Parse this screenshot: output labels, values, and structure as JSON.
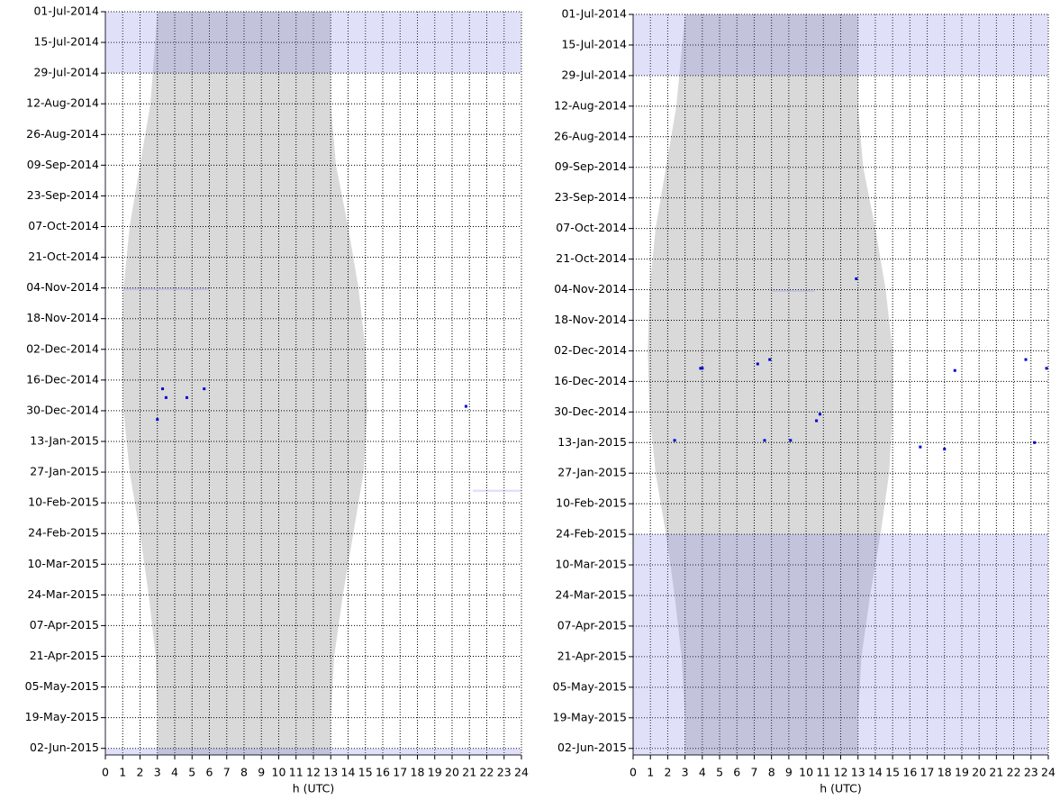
{
  "chart_data": [
    {
      "type": "scatter",
      "xlabel": "h (UTC)",
      "xlim": [
        0,
        24
      ],
      "xticks": [
        0,
        1,
        2,
        3,
        4,
        5,
        6,
        7,
        8,
        9,
        10,
        11,
        12,
        13,
        14,
        15,
        16,
        17,
        18,
        19,
        20,
        21,
        22,
        23,
        24
      ],
      "ylim": [
        "01-Jul-2014",
        "05-Jun-2015"
      ],
      "yticks": [
        "01-Jul-2014",
        "15-Jul-2014",
        "29-Jul-2014",
        "12-Aug-2014",
        "26-Aug-2014",
        "09-Sep-2014",
        "23-Sep-2014",
        "07-Oct-2014",
        "21-Oct-2014",
        "04-Nov-2014",
        "18-Nov-2014",
        "02-Dec-2014",
        "16-Dec-2014",
        "30-Dec-2014",
        "13-Jan-2015",
        "27-Jan-2015",
        "10-Feb-2015",
        "24-Feb-2015",
        "10-Mar-2015",
        "24-Mar-2015",
        "07-Apr-2015",
        "21-Apr-2015",
        "05-May-2015",
        "19-May-2015",
        "02-Jun-2015"
      ],
      "grid": true,
      "band": {
        "color": "#d9d9d9",
        "dates": [
          "01-Jul-2014",
          "12-Aug-2014",
          "09-Sep-2014",
          "07-Oct-2014",
          "04-Nov-2014",
          "02-Dec-2014",
          "30-Dec-2014",
          "27-Jan-2015",
          "24-Feb-2015",
          "24-Mar-2015",
          "21-Apr-2015",
          "19-May-2015",
          "05-Jun-2015"
        ],
        "lower": [
          3.0,
          2.6,
          2.0,
          1.4,
          1.05,
          0.95,
          1.05,
          1.4,
          2.0,
          2.5,
          2.9,
          3.0,
          3.0
        ],
        "upper": [
          13.0,
          13.0,
          13.3,
          14.0,
          14.6,
          15.0,
          15.1,
          14.9,
          14.3,
          13.7,
          13.2,
          13.0,
          13.0
        ]
      },
      "spans": {
        "color": "rgba(130,130,230,0.25)",
        "from": [
          "01-Jul-2014",
          "04-Nov-2014",
          "04-Feb-2015",
          "02-Jun-2015"
        ],
        "to": [
          "29-Jul-2014",
          "05-Nov-2014",
          "05-Feb-2015",
          "05-Jun-2015"
        ],
        "x0": [
          0,
          1,
          21.2,
          0
        ],
        "x1": [
          24,
          6,
          24,
          24
        ]
      },
      "series": [
        {
          "color": "#0000cc",
          "x": [
            3.3,
            3.5,
            4.7,
            5.7,
            20.8,
            3.0
          ],
          "y": [
            "20-Dec-2014",
            "24-Dec-2014",
            "24-Dec-2014",
            "20-Dec-2014",
            "28-Dec-2014",
            "03-Jan-2015"
          ]
        }
      ]
    },
    {
      "type": "scatter",
      "xlabel": "h (UTC)",
      "xlim": [
        0,
        24
      ],
      "xticks": [
        0,
        1,
        2,
        3,
        4,
        5,
        6,
        7,
        8,
        9,
        10,
        11,
        12,
        13,
        14,
        15,
        16,
        17,
        18,
        19,
        20,
        21,
        22,
        23,
        24
      ],
      "ylim": [
        "01-Jul-2014",
        "05-Jun-2015"
      ],
      "yticks": [
        "01-Jul-2014",
        "15-Jul-2014",
        "29-Jul-2014",
        "12-Aug-2014",
        "26-Aug-2014",
        "09-Sep-2014",
        "23-Sep-2014",
        "07-Oct-2014",
        "21-Oct-2014",
        "04-Nov-2014",
        "18-Nov-2014",
        "02-Dec-2014",
        "16-Dec-2014",
        "30-Dec-2014",
        "13-Jan-2015",
        "27-Jan-2015",
        "10-Feb-2015",
        "24-Feb-2015",
        "10-Mar-2015",
        "24-Mar-2015",
        "07-Apr-2015",
        "21-Apr-2015",
        "05-May-2015",
        "19-May-2015",
        "02-Jun-2015"
      ],
      "grid": true,
      "band": {
        "color": "#d9d9d9",
        "dates": [
          "01-Jul-2014",
          "12-Aug-2014",
          "09-Sep-2014",
          "07-Oct-2014",
          "04-Nov-2014",
          "02-Dec-2014",
          "30-Dec-2014",
          "27-Jan-2015",
          "24-Feb-2015",
          "24-Mar-2015",
          "21-Apr-2015",
          "19-May-2015",
          "05-Jun-2015"
        ],
        "lower": [
          3.0,
          2.5,
          1.9,
          1.3,
          0.95,
          0.85,
          0.95,
          1.3,
          1.9,
          2.4,
          2.8,
          3.0,
          3.0
        ],
        "upper": [
          13.0,
          13.0,
          13.3,
          14.0,
          14.6,
          15.0,
          15.0,
          14.8,
          14.3,
          13.7,
          13.2,
          13.0,
          13.0
        ]
      },
      "spans": {
        "color": "rgba(130,130,230,0.25)",
        "from": [
          "01-Jul-2014",
          "04-Nov-2014",
          "24-Feb-2015"
        ],
        "to": [
          "29-Jul-2014",
          "05-Nov-2014",
          "05-Jun-2015"
        ],
        "x0": [
          0,
          8,
          0
        ],
        "x1": [
          24,
          10.5,
          24
        ]
      },
      "series": [
        {
          "color": "#0000cc",
          "x": [
            3.9,
            4.0,
            7.2,
            7.9,
            10.8,
            10.6,
            2.4,
            7.6,
            9.1,
            16.6,
            18.0,
            18.6,
            22.7,
            23.9,
            23.2,
            12.9
          ],
          "y": [
            "10-Dec-2014",
            "10-Dec-2014",
            "08-Dec-2014",
            "06-Dec-2014",
            "31-Dec-2014",
            "03-Jan-2015",
            "12-Jan-2015",
            "12-Jan-2015",
            "12-Jan-2015",
            "15-Jan-2015",
            "16-Jan-2015",
            "11-Dec-2014",
            "06-Dec-2014",
            "10-Dec-2014",
            "13-Jan-2015",
            "30-Oct-2014"
          ]
        }
      ]
    }
  ]
}
